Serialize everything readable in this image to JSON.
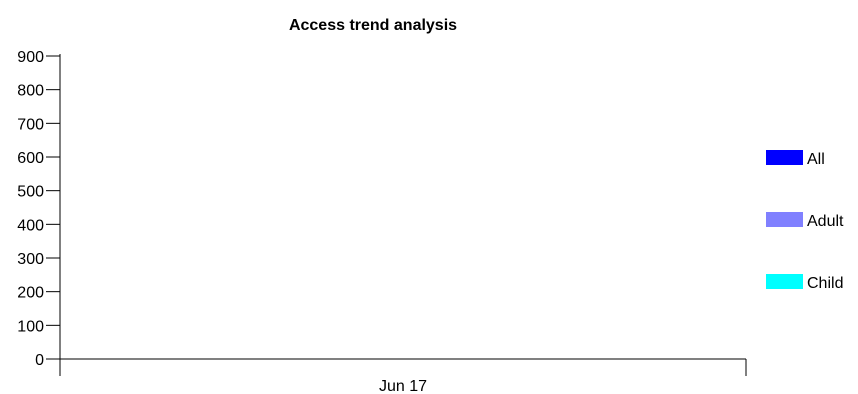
{
  "chart_data": {
    "type": "bar",
    "title": "Access trend analysis",
    "xlabel": "",
    "ylabel": "",
    "categories": [
      "Jun 17"
    ],
    "series": [
      {
        "name": "All",
        "color": "#0000ff",
        "values": [
          null
        ]
      },
      {
        "name": "Adult",
        "color": "#8080ff",
        "values": [
          null
        ]
      },
      {
        "name": "Child",
        "color": "#00ffff",
        "values": [
          null
        ]
      }
    ],
    "ylim": [
      0,
      900
    ],
    "yticks": [
      "0",
      "100",
      "200",
      "300",
      "400",
      "500",
      "600",
      "700",
      "800",
      "900"
    ],
    "grid": false,
    "legend_position": "right"
  }
}
